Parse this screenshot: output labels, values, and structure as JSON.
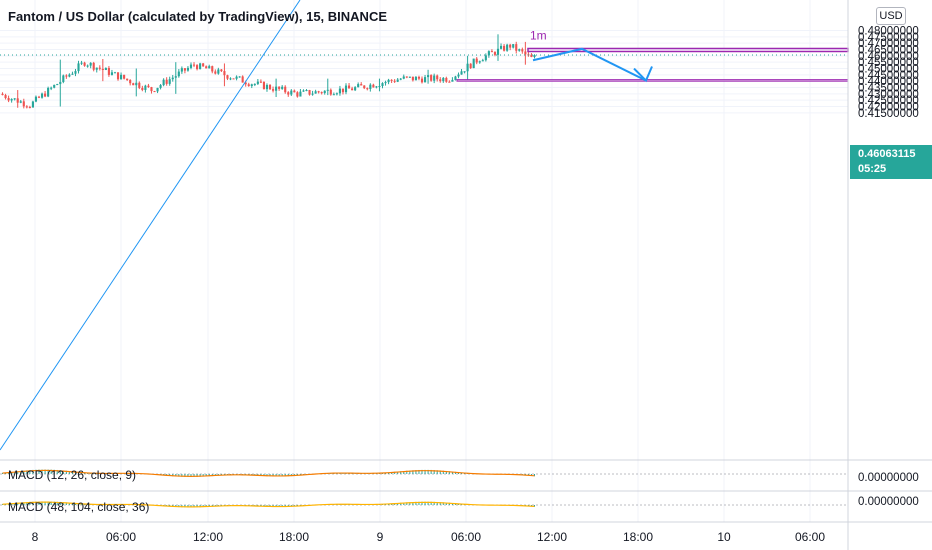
{
  "header": {
    "title": "Fantom / US Dollar (calculated by TradingView), 15, BINANCE"
  },
  "currency_button": "USD",
  "last_price": {
    "price": "0.46063115",
    "countdown": "05:25"
  },
  "indicators": [
    {
      "label": "MACD (12, 26, close, 9)"
    },
    {
      "label": "MACD (48, 104, close, 36)"
    }
  ],
  "macd_axis_labels": [
    "0.00000000",
    "0.00000000"
  ],
  "annotation_label": "1m",
  "colors": {
    "up": "#26a69a",
    "down": "#ef5350",
    "trendline": "#2196f3",
    "zone": "#9c27b0",
    "zone_fill": "#e1bee7",
    "macd_hist": "#26a69a",
    "signal": "#f57c00"
  },
  "chart_data": {
    "type": "candlestick",
    "symbol": "Fantom / US Dollar",
    "y_tick_labels": [
      "0.48000000",
      "0.47500000",
      "0.47000000",
      "0.46500000",
      "0.46000000",
      "0.45500000",
      "0.45000000",
      "0.44500000",
      "0.44000000",
      "0.43500000",
      "0.43000000",
      "0.42500000",
      "0.42000000",
      "0.41500000"
    ],
    "x_tick_labels": [
      "8",
      "06:00",
      "12:00",
      "18:00",
      "9",
      "06:00",
      "12:00",
      "18:00",
      "10",
      "06:00"
    ],
    "ylim": [
      0.4115,
      0.4815
    ],
    "last_price": 0.46063115,
    "resistance_zone": [
      0.4653,
      0.4658
    ],
    "support_zone": [
      0.44,
      0.4412
    ],
    "projected_path": [
      0.4565,
      0.4655,
      0.4405
    ],
    "segments": [
      {
        "n": 10,
        "start": 0.43,
        "end": 0.421,
        "hi": 0.433,
        "lo": 0.419
      },
      {
        "n": 18,
        "start": 0.421,
        "end": 0.455,
        "hi": 0.457,
        "lo": 0.42
      },
      {
        "n": 10,
        "start": 0.455,
        "end": 0.445,
        "hi": 0.4575,
        "lo": 0.44
      },
      {
        "n": 12,
        "start": 0.445,
        "end": 0.433,
        "hi": 0.45,
        "lo": 0.428
      },
      {
        "n": 14,
        "start": 0.433,
        "end": 0.453,
        "hi": 0.455,
        "lo": 0.43
      },
      {
        "n": 18,
        "start": 0.453,
        "end": 0.439,
        "hi": 0.454,
        "lo": 0.436
      },
      {
        "n": 16,
        "start": 0.439,
        "end": 0.43,
        "hi": 0.442,
        "lo": 0.4275
      },
      {
        "n": 18,
        "start": 0.43,
        "end": 0.434,
        "hi": 0.442,
        "lo": 0.429
      },
      {
        "n": 16,
        "start": 0.434,
        "end": 0.442,
        "hi": 0.442,
        "lo": 0.432
      },
      {
        "n": 16,
        "start": 0.442,
        "end": 0.442,
        "hi": 0.449,
        "lo": 0.438
      },
      {
        "n": 10,
        "start": 0.442,
        "end": 0.458,
        "hi": 0.46,
        "lo": 0.441
      },
      {
        "n": 10,
        "start": 0.458,
        "end": 0.468,
        "hi": 0.477,
        "lo": 0.456
      },
      {
        "n": 8,
        "start": 0.468,
        "end": 0.4565,
        "hi": 0.471,
        "lo": 0.453
      }
    ]
  }
}
